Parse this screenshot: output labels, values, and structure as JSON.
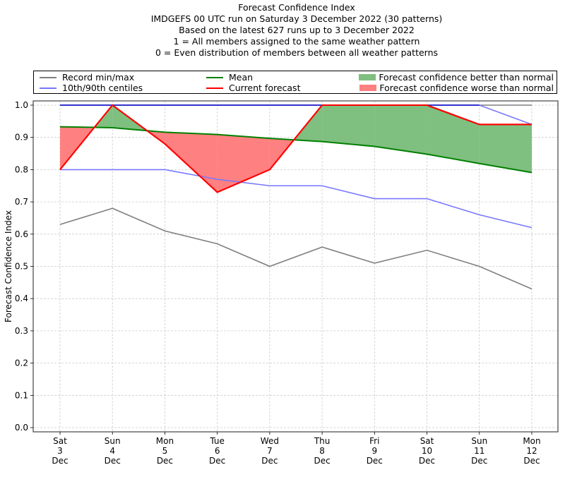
{
  "chart_data": {
    "type": "line",
    "title": "Forecast Confidence Index",
    "subtitle_lines": [
      "IMDGEFS 00 UTC run on Saturday 3 December 2022 (30 patterns)",
      "Based on the latest 627 runs up to 3 December 2022",
      "1 = All members assigned to the same weather pattern",
      "0 = Even distribution of members between all weather patterns"
    ],
    "xlabel": "",
    "ylabel": "Forecast Confidence Index",
    "ylim": [
      0.0,
      1.0
    ],
    "yticks": [
      "0.0",
      "0.1",
      "0.2",
      "0.3",
      "0.4",
      "0.5",
      "0.6",
      "0.7",
      "0.8",
      "0.9",
      "1.0"
    ],
    "grid": true,
    "legend_placement": "top",
    "categories": [
      {
        "day": "Sat",
        "date": "3",
        "month": "Dec"
      },
      {
        "day": "Sun",
        "date": "4",
        "month": "Dec"
      },
      {
        "day": "Mon",
        "date": "5",
        "month": "Dec"
      },
      {
        "day": "Tue",
        "date": "6",
        "month": "Dec"
      },
      {
        "day": "Wed",
        "date": "7",
        "month": "Dec"
      },
      {
        "day": "Thu",
        "date": "8",
        "month": "Dec"
      },
      {
        "day": "Fri",
        "date": "9",
        "month": "Dec"
      },
      {
        "day": "Sat",
        "date": "10",
        "month": "Dec"
      },
      {
        "day": "Sun",
        "date": "11",
        "month": "Dec"
      },
      {
        "day": "Mon",
        "date": "12",
        "month": "Dec"
      }
    ],
    "series": [
      {
        "name": "Record min",
        "legend": "Record min/max",
        "color": "#7f7f7f",
        "values": [
          0.63,
          0.68,
          0.61,
          0.57,
          0.5,
          0.56,
          0.51,
          0.55,
          0.5,
          0.43
        ]
      },
      {
        "name": "Record max",
        "legend": "Record min/max",
        "color": "#7f7f7f",
        "values": [
          1.0,
          1.0,
          1.0,
          1.0,
          1.0,
          1.0,
          1.0,
          1.0,
          1.0,
          1.0
        ]
      },
      {
        "name": "10th centile",
        "legend": "10th/90th centiles",
        "color": "#7777ff",
        "values": [
          0.8,
          0.8,
          0.8,
          0.77,
          0.75,
          0.75,
          0.71,
          0.71,
          0.66,
          0.62
        ]
      },
      {
        "name": "90th centile",
        "legend": "10th/90th centiles",
        "color": "#7777ff",
        "values": [
          1.0,
          1.0,
          1.0,
          1.0,
          1.0,
          1.0,
          1.0,
          1.0,
          1.0,
          0.94
        ]
      },
      {
        "name": "Mean",
        "legend": "Mean",
        "color": "#008000",
        "values": [
          0.933,
          0.93,
          0.916,
          0.909,
          0.897,
          0.887,
          0.872,
          0.848,
          0.819,
          0.791
        ]
      },
      {
        "name": "Current forecast",
        "legend": "Current forecast",
        "color": "#ff0000",
        "values": [
          0.8,
          1.0,
          0.88,
          0.73,
          0.8,
          1.0,
          1.0,
          1.0,
          0.94,
          0.94
        ]
      }
    ],
    "fills": [
      {
        "name": "Forecast confidence better than normal",
        "color": "#7fbf7f"
      },
      {
        "name": "Forecast confidence worse than normal",
        "color": "#ff8080"
      }
    ]
  },
  "legend": {
    "record": "Record min/max",
    "centiles": "10th/90th centiles",
    "mean": "Mean",
    "current": "Current forecast",
    "better": "Forecast confidence better than normal",
    "worse": "Forecast confidence worse than normal"
  }
}
